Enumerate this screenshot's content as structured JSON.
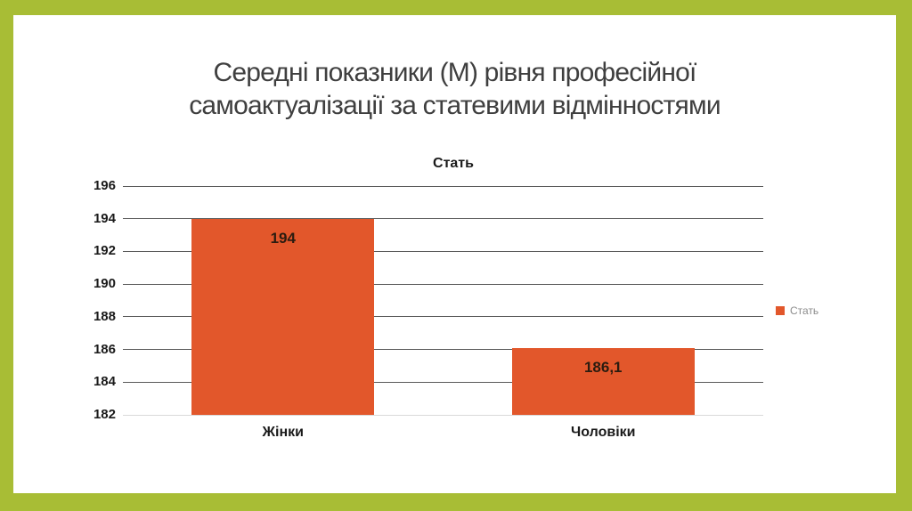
{
  "slide": {
    "title": "Середні показники (М) рівня професійної\nсамоактуалізації за статевими відмінностями"
  },
  "chart_data": {
    "type": "bar",
    "title": "Стать",
    "categories": [
      "Жінки",
      "Чоловіки"
    ],
    "values": [
      194,
      186.1
    ],
    "value_labels": [
      "194",
      "186,1"
    ],
    "ylim": [
      182,
      196
    ],
    "ytick_step": 2,
    "yticks": [
      182,
      184,
      186,
      188,
      190,
      192,
      194,
      196
    ],
    "grid": "horizontal",
    "legend": {
      "position": "right",
      "entries": [
        {
          "label": "Стать",
          "color": "#E2572B"
        }
      ]
    },
    "colors": {
      "bar": "#E2572B",
      "grid": "#5A5A5A",
      "axis_line": "#D9D9D9",
      "bar_label": "#2B1C10",
      "tick_text": "#1A1A1A",
      "legend_text": "#8C8C8C",
      "frame": "#A8BD35",
      "slide_title": "#3F3F3F"
    }
  }
}
